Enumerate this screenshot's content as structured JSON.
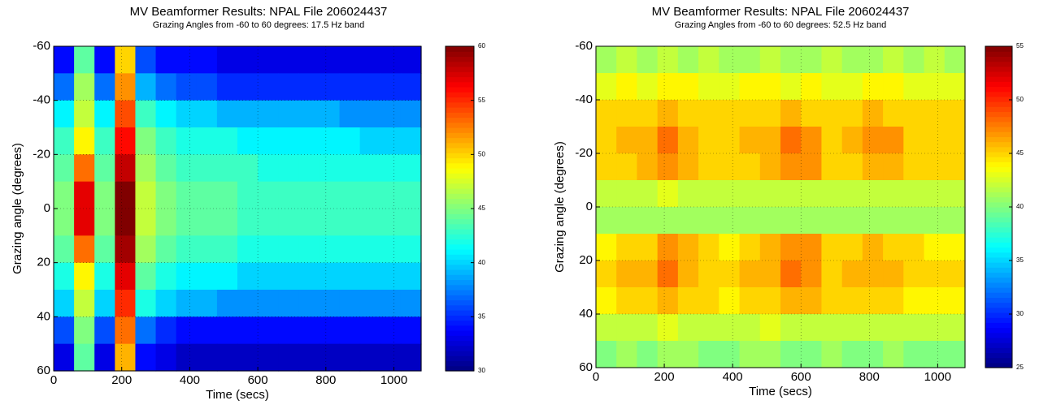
{
  "chart_data": [
    {
      "type": "heatmap",
      "title": "MV Beamformer Results: NPAL File 206024437",
      "subtitle": "Grazing Angles from -60 to 60 degrees: 17.5 Hz band",
      "xlabel": "Time (secs)",
      "ylabel": "Grazing angle (degrees)",
      "x": [
        30,
        90,
        150,
        210,
        270,
        330,
        390,
        450,
        510,
        570,
        630,
        690,
        750,
        810,
        870,
        930,
        990,
        1050
      ],
      "y": [
        -55,
        -45,
        -35,
        -25,
        -15,
        -5,
        5,
        15,
        25,
        35,
        45,
        55
      ],
      "values": [
        [
          34,
          44,
          34,
          50,
          36,
          34,
          34,
          34,
          33,
          33,
          33,
          33,
          33,
          33,
          33,
          33,
          33,
          33
        ],
        [
          37,
          46,
          37,
          52,
          39,
          37,
          36,
          36,
          35,
          35,
          35,
          35,
          35,
          35,
          35,
          35,
          35,
          35
        ],
        [
          41,
          47,
          41,
          54,
          43,
          41,
          40,
          40,
          39,
          39,
          39,
          39,
          39,
          39,
          38,
          38,
          38,
          38
        ],
        [
          43,
          49,
          43,
          56,
          45,
          43,
          42,
          42,
          42,
          41,
          41,
          41,
          41,
          41,
          41,
          40,
          40,
          40
        ],
        [
          44,
          53,
          44,
          58,
          46,
          44,
          43,
          43,
          43,
          43,
          42,
          42,
          42,
          42,
          42,
          42,
          42,
          42
        ],
        [
          45,
          57,
          45,
          60,
          47,
          45,
          44,
          44,
          44,
          43,
          43,
          43,
          43,
          43,
          43,
          43,
          43,
          43
        ],
        [
          45,
          57,
          45,
          60,
          47,
          45,
          44,
          44,
          44,
          43,
          43,
          43,
          43,
          43,
          43,
          43,
          43,
          43
        ],
        [
          44,
          53,
          44,
          59,
          46,
          44,
          43,
          43,
          43,
          42,
          42,
          42,
          42,
          42,
          42,
          42,
          42,
          42
        ],
        [
          42,
          49,
          42,
          57,
          44,
          42,
          41,
          41,
          41,
          40,
          40,
          40,
          40,
          40,
          40,
          40,
          40,
          40
        ],
        [
          40,
          47,
          40,
          55,
          42,
          40,
          39,
          39,
          38,
          38,
          38,
          38,
          38,
          38,
          38,
          38,
          38,
          38
        ],
        [
          36,
          45,
          36,
          53,
          37,
          35,
          34,
          34,
          34,
          34,
          34,
          34,
          34,
          34,
          34,
          34,
          34,
          34
        ],
        [
          33,
          44,
          33,
          51,
          34,
          33,
          32,
          32,
          32,
          32,
          32,
          32,
          32,
          32,
          32,
          32,
          32,
          32
        ]
      ],
      "xlim": [
        0,
        1080
      ],
      "ylim": [
        -60,
        60
      ],
      "y_reversed": true,
      "xticks": [
        0,
        200,
        400,
        600,
        800,
        1000
      ],
      "yticks": [
        -60,
        -40,
        -20,
        0,
        20,
        40,
        60
      ],
      "colormap": "jet",
      "clim": [
        30,
        60
      ],
      "cticks": [
        30,
        35,
        40,
        45,
        50,
        55,
        60
      ],
      "grid": true
    },
    {
      "type": "heatmap",
      "title": "MV Beamformer Results: NPAL File 206024437",
      "subtitle": "Grazing Angles from -60 to 60 degrees: 52.5 Hz band",
      "xlabel": "Time (secs)",
      "ylabel": "Grazing angle (degrees)",
      "x": [
        30,
        90,
        150,
        210,
        270,
        330,
        390,
        450,
        510,
        570,
        630,
        690,
        750,
        810,
        870,
        930,
        990,
        1050
      ],
      "y": [
        -55,
        -45,
        -35,
        -25,
        -15,
        -5,
        5,
        15,
        25,
        35,
        45,
        55
      ],
      "values": [
        [
          41,
          42,
          41,
          42,
          41,
          42,
          41,
          41,
          42,
          41,
          41,
          42,
          41,
          41,
          42,
          41,
          42,
          41
        ],
        [
          43,
          44,
          43,
          44,
          44,
          43,
          43,
          44,
          44,
          43,
          44,
          43,
          43,
          44,
          44,
          43,
          43,
          43
        ],
        [
          45,
          45,
          45,
          46,
          45,
          45,
          45,
          45,
          45,
          46,
          45,
          45,
          45,
          46,
          45,
          45,
          45,
          45
        ],
        [
          45,
          46,
          46,
          48,
          46,
          45,
          45,
          46,
          46,
          48,
          47,
          45,
          46,
          47,
          47,
          45,
          45,
          45
        ],
        [
          45,
          45,
          46,
          47,
          46,
          45,
          45,
          45,
          46,
          47,
          47,
          45,
          45,
          46,
          46,
          45,
          45,
          45
        ],
        [
          42,
          42,
          42,
          43,
          42,
          42,
          42,
          42,
          42,
          42,
          42,
          42,
          42,
          42,
          42,
          42,
          42,
          42
        ],
        [
          41,
          41,
          41,
          41,
          41,
          41,
          41,
          41,
          41,
          41,
          41,
          41,
          41,
          41,
          41,
          41,
          41,
          41
        ],
        [
          44,
          45,
          45,
          47,
          46,
          45,
          44,
          45,
          46,
          47,
          47,
          45,
          45,
          46,
          45,
          45,
          44,
          44
        ],
        [
          45,
          46,
          46,
          48,
          46,
          45,
          45,
          46,
          46,
          48,
          47,
          45,
          46,
          46,
          46,
          45,
          45,
          45
        ],
        [
          44,
          45,
          45,
          46,
          45,
          45,
          44,
          45,
          45,
          46,
          46,
          45,
          45,
          45,
          45,
          44,
          44,
          44
        ],
        [
          42,
          42,
          42,
          43,
          42,
          42,
          42,
          42,
          43,
          42,
          42,
          42,
          42,
          42,
          42,
          42,
          42,
          42
        ],
        [
          40,
          41,
          40,
          41,
          41,
          40,
          40,
          41,
          41,
          40,
          40,
          41,
          40,
          40,
          41,
          40,
          40,
          40
        ]
      ],
      "xlim": [
        0,
        1080
      ],
      "ylim": [
        -60,
        60
      ],
      "y_reversed": true,
      "xticks": [
        0,
        200,
        400,
        600,
        800,
        1000
      ],
      "yticks": [
        -60,
        -40,
        -20,
        0,
        20,
        40,
        60
      ],
      "colormap": "jet",
      "clim": [
        25,
        55
      ],
      "cticks": [
        25,
        30,
        35,
        40,
        45,
        50,
        55
      ],
      "grid": true
    }
  ]
}
